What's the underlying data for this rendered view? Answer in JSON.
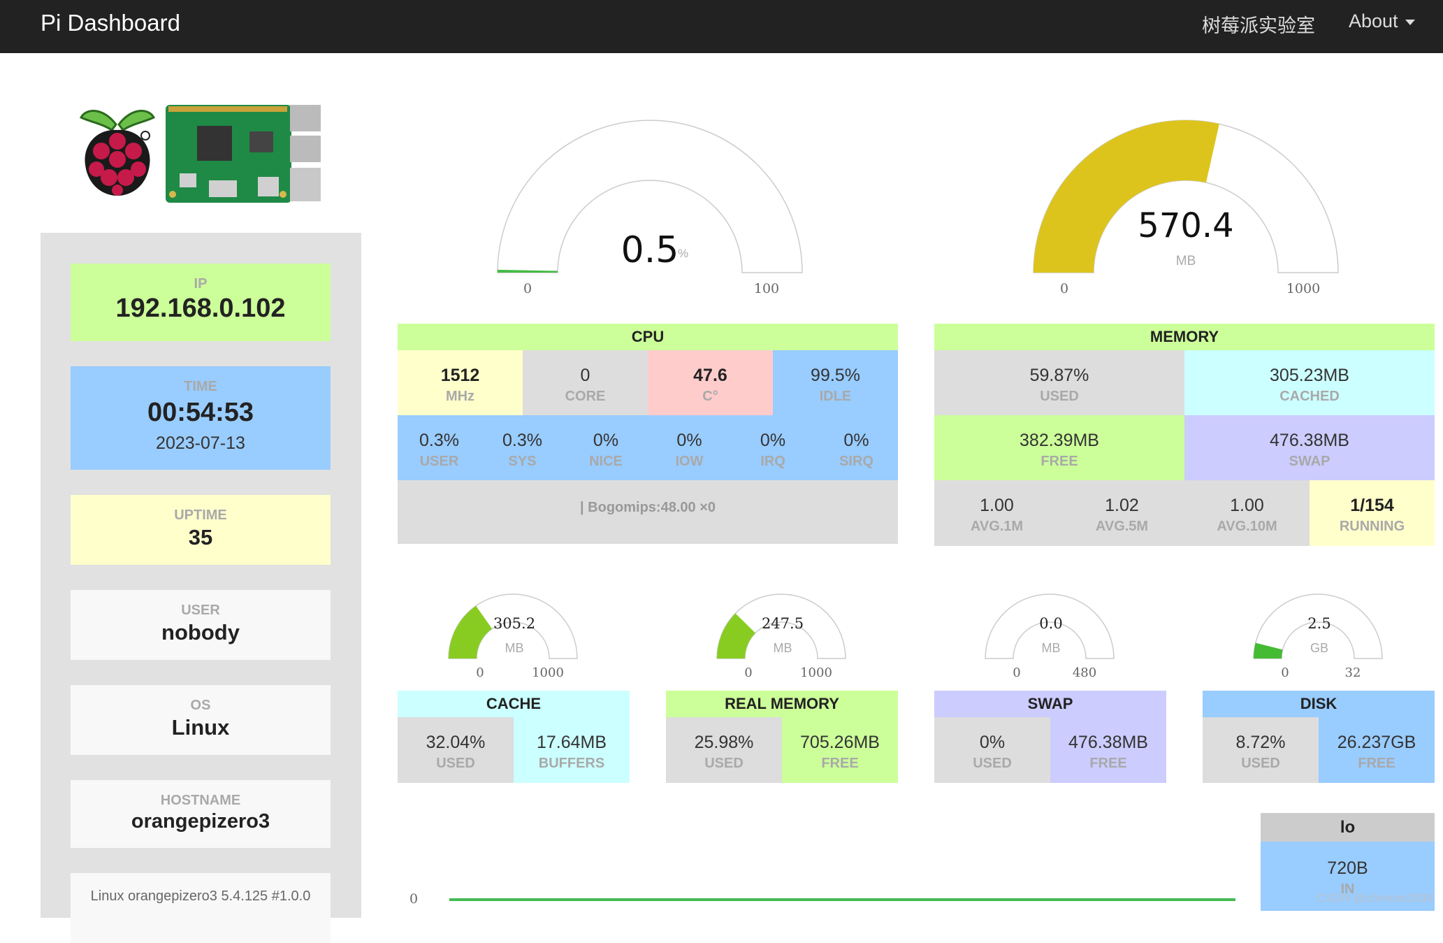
{
  "navbar": {
    "brand": "Pi Dashboard",
    "lab_link": "树莓派实验室",
    "about_link": "About"
  },
  "sidebar": {
    "ip": {
      "label": "IP",
      "value": "192.168.0.102"
    },
    "time": {
      "label": "TIME",
      "value": "00:54:53",
      "date": "2023-07-13"
    },
    "uptime": {
      "label": "UPTIME",
      "value": "35"
    },
    "user": {
      "label": "USER",
      "value": "nobody"
    },
    "os": {
      "label": "OS",
      "value": "Linux"
    },
    "hostname": {
      "label": "HOSTNAME",
      "value": "orangepizero3"
    },
    "kernel": "Linux orangepizero3 5.4.125 #1.0.0"
  },
  "cpu_gauge": {
    "value": "0.5",
    "unit": "%",
    "min": "0",
    "max": "100",
    "fraction": 0.005
  },
  "memory_gauge": {
    "value": "570.4",
    "unit": "MB",
    "min": "0",
    "max": "1000",
    "fraction": 0.5704
  },
  "cpu": {
    "title": "CPU",
    "freq": {
      "value": "1512",
      "unit": "MHz"
    },
    "core": {
      "value": "0",
      "unit": "CORE"
    },
    "temp": {
      "value": "47.6",
      "unit": "C°"
    },
    "idle": {
      "value": "99.5%",
      "unit": "IDLE"
    },
    "user": {
      "value": "0.3%",
      "unit": "USER"
    },
    "sys": {
      "value": "0.3%",
      "unit": "SYS"
    },
    "nice": {
      "value": "0%",
      "unit": "NICE"
    },
    "iow": {
      "value": "0%",
      "unit": "IOW"
    },
    "irq": {
      "value": "0%",
      "unit": "IRQ"
    },
    "sirq": {
      "value": "0%",
      "unit": "SIRQ"
    },
    "bogomips": "| Bogomips:48.00 ×0"
  },
  "memory": {
    "title": "MEMORY",
    "used": {
      "value": "59.87%",
      "unit": "USED"
    },
    "cached": {
      "value": "305.23MB",
      "unit": "CACHED"
    },
    "free": {
      "value": "382.39MB",
      "unit": "FREE"
    },
    "swap": {
      "value": "476.38MB",
      "unit": "SWAP"
    },
    "avg1": {
      "value": "1.00",
      "unit": "AVG.1M"
    },
    "avg5": {
      "value": "1.02",
      "unit": "AVG.5M"
    },
    "avg10": {
      "value": "1.00",
      "unit": "AVG.10M"
    },
    "running": {
      "value": "1/154",
      "unit": "RUNNING"
    }
  },
  "small_gauges": {
    "cache": {
      "value": "305.2",
      "unit": "MB",
      "min": "0",
      "max": "1000",
      "fraction": 0.3052
    },
    "real_memory": {
      "value": "247.5",
      "unit": "MB",
      "min": "0",
      "max": "1000",
      "fraction": 0.2475
    },
    "swap": {
      "value": "0.0",
      "unit": "MB",
      "min": "0",
      "max": "480",
      "fraction": 0.0
    },
    "disk": {
      "value": "2.5",
      "unit": "GB",
      "min": "0",
      "max": "32",
      "fraction": 0.078
    }
  },
  "cache_panel": {
    "title": "CACHE",
    "used": {
      "value": "32.04%",
      "unit": "USED"
    },
    "buffers": {
      "value": "17.64MB",
      "unit": "BUFFERS"
    }
  },
  "real_memory_panel": {
    "title": "REAL MEMORY",
    "used": {
      "value": "25.98%",
      "unit": "USED"
    },
    "free": {
      "value": "705.26MB",
      "unit": "FREE"
    }
  },
  "swap_panel": {
    "title": "SWAP",
    "used": {
      "value": "0%",
      "unit": "USED"
    },
    "free": {
      "value": "476.38MB",
      "unit": "FREE"
    }
  },
  "disk_panel": {
    "title": "DISK",
    "used": {
      "value": "8.72%",
      "unit": "USED"
    },
    "free": {
      "value": "26.237GB",
      "unit": "FREE"
    }
  },
  "network": {
    "axis_zero": "0",
    "interface": "lo",
    "in": {
      "value": "720B",
      "unit": "IN"
    }
  },
  "watermark": "CSDN @chinxue2008",
  "colors": {
    "green_panel": "#ccff99",
    "blue_panel": "#99ccff",
    "yellow_panel": "#ffffcc",
    "pink_panel": "#ffcccc",
    "cyan_panel": "#ccffff",
    "lavender_panel": "#ccccff",
    "gray_panel": "#dddddd",
    "memory_gauge_fill": "#ddc41d",
    "small_gauge_fill": "#88cc22",
    "disk_gauge_fill": "#44bb33",
    "cpu_gauge_fill": "#44bb44"
  }
}
